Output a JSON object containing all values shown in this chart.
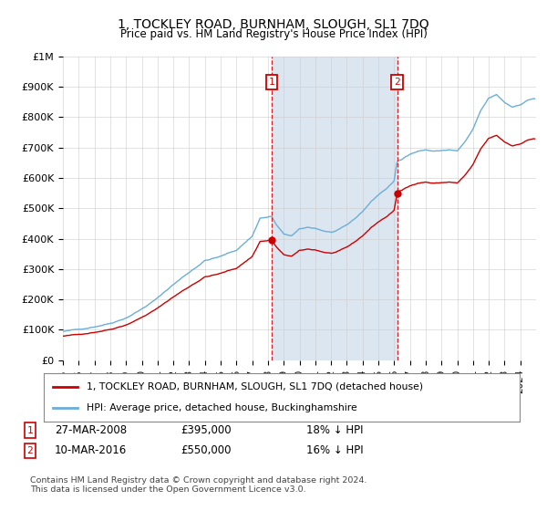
{
  "title": "1, TOCKLEY ROAD, BURNHAM, SLOUGH, SL1 7DQ",
  "subtitle": "Price paid vs. HM Land Registry's House Price Index (HPI)",
  "legend_line1": "1, TOCKLEY ROAD, BURNHAM, SLOUGH, SL1 7DQ (detached house)",
  "legend_line2": "HPI: Average price, detached house, Buckinghamshire",
  "sale1_date": "27-MAR-2008",
  "sale1_price": 395000,
  "sale1_label": "18% ↓ HPI",
  "sale2_date": "10-MAR-2016",
  "sale2_price": 550000,
  "sale2_label": "16% ↓ HPI",
  "footer": "Contains HM Land Registry data © Crown copyright and database right 2024.\nThis data is licensed under the Open Government Licence v3.0.",
  "hpi_color": "#6baed6",
  "sale_color": "#cc0000",
  "shading_color": "#dce6f1",
  "sale1_x": 2008.23,
  "sale2_x": 2016.19,
  "yticks": [
    0,
    100000,
    200000,
    300000,
    400000,
    500000,
    600000,
    700000,
    800000,
    900000,
    1000000
  ],
  "ylabels": [
    "£0",
    "£100K",
    "£200K",
    "£300K",
    "£400K",
    "£500K",
    "£600K",
    "£700K",
    "£800K",
    "£900K",
    "£1M"
  ],
  "xmin": 1995.0,
  "xmax": 2025.0,
  "ymin": 0,
  "ymax": 1000000
}
